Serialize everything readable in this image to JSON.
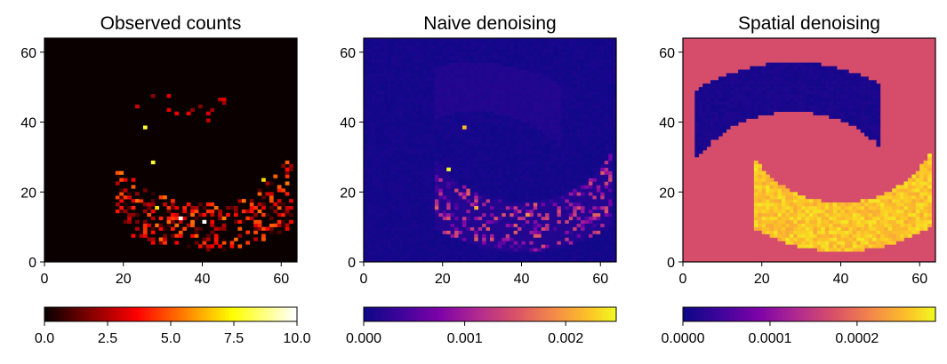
{
  "chart_data": [
    {
      "type": "heatmap",
      "title": "Observed counts",
      "xlim": [
        0,
        64
      ],
      "ylim": [
        0,
        64
      ],
      "xticks": [
        0,
        20,
        40,
        60
      ],
      "yticks": [
        0,
        20,
        40,
        60
      ],
      "xtick_labels": [
        "0",
        "20",
        "40",
        "60"
      ],
      "ytick_labels": [
        "0",
        "20",
        "40",
        "60"
      ],
      "colormap": "hot",
      "colorbar": {
        "range": [
          0,
          10
        ],
        "ticks": [
          0,
          2.5,
          5,
          7.5,
          10
        ],
        "tick_labels": [
          "0.0",
          "2.5",
          "5.0",
          "7.5",
          "10.0"
        ],
        "orientation": "horizontal"
      },
      "background_value": 0,
      "hotspots": [
        {
          "x": 34,
          "y": 12,
          "value": 10
        },
        {
          "x": 40,
          "y": 11,
          "value": 10
        },
        {
          "x": 25,
          "y": 38,
          "value": 8
        },
        {
          "x": 27,
          "y": 28,
          "value": 8
        },
        {
          "x": 55,
          "y": 23,
          "value": 7
        },
        {
          "x": 28,
          "y": 15,
          "value": 7
        }
      ]
    },
    {
      "type": "heatmap",
      "title": "Naive denoising",
      "xlim": [
        0,
        64
      ],
      "ylim": [
        0,
        64
      ],
      "xticks": [
        0,
        20,
        40,
        60
      ],
      "yticks": [
        0,
        20,
        40,
        60
      ],
      "xtick_labels": [
        "0",
        "20",
        "40",
        "60"
      ],
      "ytick_labels": [
        "0",
        "20",
        "40",
        "60"
      ],
      "colormap": "plasma",
      "colorbar": {
        "range": [
          0,
          0.0025
        ],
        "ticks": [
          0,
          0.001,
          0.002
        ],
        "tick_labels": [
          "0.000",
          "0.001",
          "0.002"
        ],
        "orientation": "horizontal"
      },
      "background_value": 5e-05,
      "hotspots": [
        {
          "x": 21,
          "y": 26,
          "value": 0.0025
        },
        {
          "x": 25,
          "y": 38,
          "value": 0.0022
        },
        {
          "x": 28,
          "y": 15,
          "value": 0.0021
        },
        {
          "x": 41,
          "y": 13,
          "value": 0.0019
        }
      ]
    },
    {
      "type": "heatmap",
      "title": "Spatial denoising",
      "xlim": [
        0,
        64
      ],
      "ylim": [
        0,
        64
      ],
      "xticks": [
        0,
        20,
        40,
        60
      ],
      "yticks": [
        0,
        20,
        40,
        60
      ],
      "xtick_labels": [
        "0",
        "20",
        "40",
        "60"
      ],
      "ytick_labels": [
        "0",
        "20",
        "40",
        "60"
      ],
      "colormap": "plasma",
      "colorbar": {
        "range": [
          0,
          0.00029
        ],
        "ticks": [
          0,
          0.0001,
          0.0002
        ],
        "tick_labels": [
          "0.0000",
          "0.0001",
          "0.0002"
        ],
        "orientation": "horizontal"
      },
      "background_value": 0.00017,
      "upper_moon_value": 5e-06,
      "lower_moon_value": 0.00026
    }
  ]
}
